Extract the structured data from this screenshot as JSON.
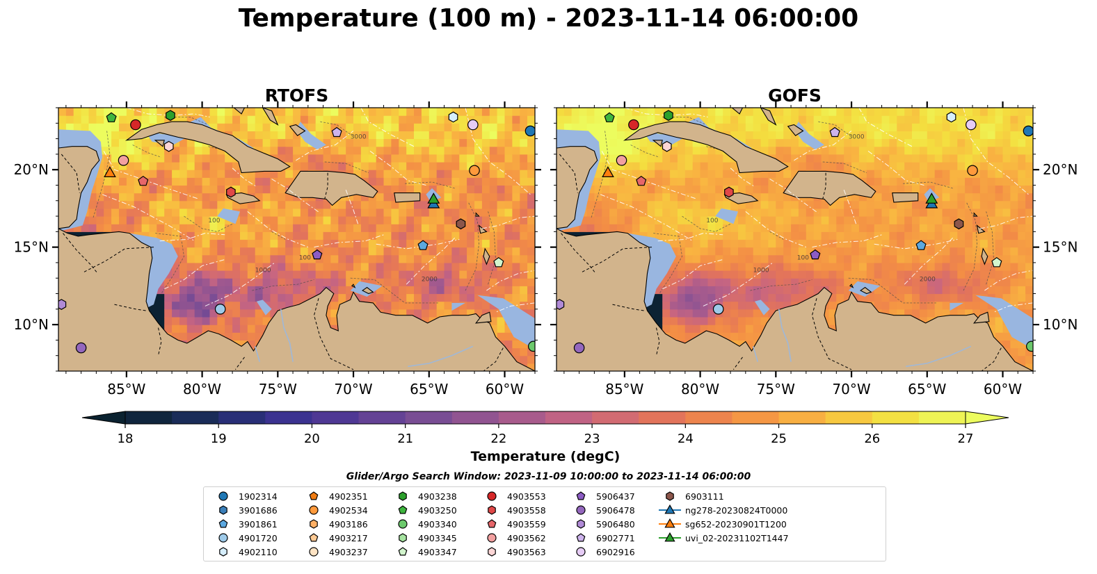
{
  "title": "Temperature (100 m) - 2023-11-14 06:00:00",
  "panels": [
    {
      "title": "RTOFS",
      "variant": 0
    },
    {
      "title": "GOFS",
      "variant": 1
    }
  ],
  "map": {
    "lon_range": [
      -89.5,
      -58.0
    ],
    "lat_range": [
      7.0,
      24.0
    ],
    "lon_ticks": [
      -85,
      -80,
      -75,
      -70,
      -65,
      -60
    ],
    "lon_tick_labels": [
      "85°W",
      "80°W",
      "75°W",
      "70°W",
      "65°W",
      "60°W"
    ],
    "lat_ticks": [
      10,
      15,
      20
    ],
    "lat_tick_labels": [
      "10°N",
      "15°N",
      "20°N"
    ],
    "contour_labels": [
      "100",
      "1000",
      "2000",
      "3000"
    ],
    "colors": {
      "land": "#d2b48c",
      "shelf": "#99b6e0",
      "ocean_cold": "#0c2233",
      "border": "#000000",
      "eez": "#ffffff"
    }
  },
  "colorbar": {
    "label": "Temperature (degC)",
    "min": 18,
    "max": 27,
    "step": 0.5,
    "ticks": [
      18,
      19,
      20,
      21,
      22,
      23,
      24,
      25,
      26,
      27
    ],
    "extend": "both",
    "cmap_stops": [
      "#0b2230",
      "#1b2d5c",
      "#36308f",
      "#573b96",
      "#7a4d94",
      "#a1598f",
      "#c76581",
      "#e2735c",
      "#f38d45",
      "#f9b441",
      "#f4de3f",
      "#ecfc5e"
    ]
  },
  "legend": {
    "title": "Glider/Argo Search Window: 2023-11-09 10:00:00 to 2023-11-14 06:00:00",
    "entries": [
      {
        "label": "1902314",
        "marker": "circle",
        "color": "#1f77b4"
      },
      {
        "label": "3901686",
        "marker": "hexagon",
        "color": "#3b7fb9"
      },
      {
        "label": "3901861",
        "marker": "pentagon",
        "color": "#5ca8e0"
      },
      {
        "label": "4901720",
        "marker": "circle",
        "color": "#9ecae9"
      },
      {
        "label": "4902110",
        "marker": "hexagon",
        "color": "#d6eefc"
      },
      {
        "label": "4902351",
        "marker": "pentagon",
        "color": "#f07c12"
      },
      {
        "label": "4902534",
        "marker": "circle",
        "color": "#ff9a3c"
      },
      {
        "label": "4903186",
        "marker": "hexagon",
        "color": "#ffb066"
      },
      {
        "label": "4903217",
        "marker": "pentagon",
        "color": "#ffca94"
      },
      {
        "label": "4903237",
        "marker": "circle",
        "color": "#ffe4c4"
      },
      {
        "label": "4903238",
        "marker": "hexagon",
        "color": "#2ca02c"
      },
      {
        "label": "4903250",
        "marker": "pentagon",
        "color": "#3fb53f"
      },
      {
        "label": "4903340",
        "marker": "circle",
        "color": "#6cc96c"
      },
      {
        "label": "4903345",
        "marker": "hexagon",
        "color": "#a6e3a0"
      },
      {
        "label": "4903347",
        "marker": "pentagon",
        "color": "#d2f5cd"
      },
      {
        "label": "4903553",
        "marker": "circle",
        "color": "#d62728"
      },
      {
        "label": "4903558",
        "marker": "hexagon",
        "color": "#e04848"
      },
      {
        "label": "4903559",
        "marker": "pentagon",
        "color": "#e6666a"
      },
      {
        "label": "4903562",
        "marker": "circle",
        "color": "#f2a0a0"
      },
      {
        "label": "4903563",
        "marker": "hexagon",
        "color": "#fcd6d6"
      },
      {
        "label": "5906437",
        "marker": "pentagon",
        "color": "#8c5cc4"
      },
      {
        "label": "5906478",
        "marker": "circle",
        "color": "#9467bd"
      },
      {
        "label": "5906480",
        "marker": "hexagon",
        "color": "#b08ad6"
      },
      {
        "label": "6902771",
        "marker": "pentagon",
        "color": "#cdb3ec"
      },
      {
        "label": "6902916",
        "marker": "circle",
        "color": "#e6ccf5"
      },
      {
        "label": "6903111",
        "marker": "hexagon",
        "color": "#8c564b"
      },
      {
        "label": "ng278-20230824T0000",
        "marker": "triangle-line",
        "color": "#1f77b4"
      },
      {
        "label": "sg652-20230901T1200",
        "marker": "triangle-line",
        "color": "#ff7f0e"
      },
      {
        "label": "uvi_02-20231102T1447",
        "marker": "triangle-line",
        "color": "#2ca02c"
      }
    ]
  },
  "observations": [
    {
      "id": "1902314",
      "lon": -58.3,
      "lat": 22.5
    },
    {
      "id": "4901720",
      "lon": -78.8,
      "lat": 11.0
    },
    {
      "id": "4902110",
      "lon": -63.4,
      "lat": 23.4
    },
    {
      "id": "4902534",
      "lon": -62.0,
      "lat": 19.95
    },
    {
      "id": "4903250",
      "lon": -86.0,
      "lat": 23.35
    },
    {
      "id": "4903238",
      "lon": -82.1,
      "lat": 23.5
    },
    {
      "id": "4903340",
      "lon": -58.1,
      "lat": 8.6
    },
    {
      "id": "4903347",
      "lon": -60.4,
      "lat": 14.0
    },
    {
      "id": "4903553",
      "lon": -84.4,
      "lat": 22.9
    },
    {
      "id": "4903558",
      "lon": -78.1,
      "lat": 18.55
    },
    {
      "id": "4903559",
      "lon": -83.9,
      "lat": 19.25
    },
    {
      "id": "4903562",
      "lon": -85.2,
      "lat": 20.6
    },
    {
      "id": "4903563",
      "lon": -82.2,
      "lat": 21.5
    },
    {
      "id": "3901861",
      "lon": -65.4,
      "lat": 15.1
    },
    {
      "id": "5906437",
      "lon": -72.4,
      "lat": 14.5
    },
    {
      "id": "5906478",
      "lon": -88.0,
      "lat": 8.5
    },
    {
      "id": "5906480",
      "lon": -89.3,
      "lat": 11.3
    },
    {
      "id": "6902771",
      "lon": -71.1,
      "lat": 22.4
    },
    {
      "id": "6902916",
      "lon": -62.1,
      "lat": 22.9
    },
    {
      "id": "6903111",
      "lon": -62.9,
      "lat": 16.5
    },
    {
      "id": "sg652-20230901T1200",
      "lon": -86.1,
      "lat": 19.8
    },
    {
      "id": "ng278-20230824T0000",
      "lon": -64.7,
      "lat": 17.8
    },
    {
      "id": "uvi_02-20231102T1447",
      "lon": -64.7,
      "lat": 18.1
    }
  ]
}
